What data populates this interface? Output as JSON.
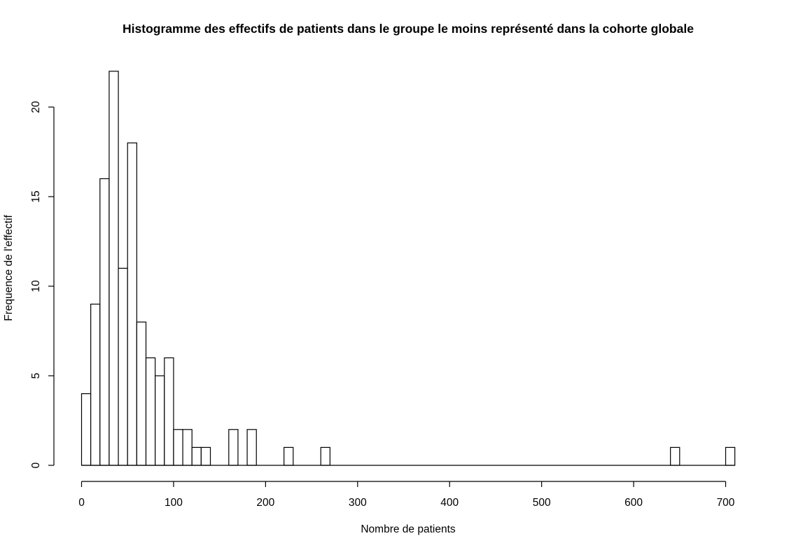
{
  "chart_data": {
    "type": "bar",
    "title": "Histogramme des effectifs de patients dans le groupe le moins représenté dans la cohorte globale",
    "xlabel": "Nombre de patients",
    "ylabel": "Frequence de l'effectif",
    "bin_width": 10,
    "xlim": [
      0,
      710
    ],
    "ylim": [
      0,
      22
    ],
    "x_ticks": [
      0,
      100,
      200,
      300,
      400,
      500,
      600,
      700
    ],
    "y_ticks": [
      0,
      5,
      10,
      15,
      20
    ],
    "bins": [
      {
        "x0": 0,
        "x1": 10,
        "count": 4
      },
      {
        "x0": 10,
        "x1": 20,
        "count": 9
      },
      {
        "x0": 20,
        "x1": 30,
        "count": 16
      },
      {
        "x0": 30,
        "x1": 40,
        "count": 22
      },
      {
        "x0": 40,
        "x1": 50,
        "count": 11
      },
      {
        "x0": 50,
        "x1": 60,
        "count": 18
      },
      {
        "x0": 60,
        "x1": 70,
        "count": 8
      },
      {
        "x0": 70,
        "x1": 80,
        "count": 6
      },
      {
        "x0": 80,
        "x1": 90,
        "count": 5
      },
      {
        "x0": 90,
        "x1": 100,
        "count": 6
      },
      {
        "x0": 100,
        "x1": 110,
        "count": 2
      },
      {
        "x0": 110,
        "x1": 120,
        "count": 2
      },
      {
        "x0": 120,
        "x1": 130,
        "count": 1
      },
      {
        "x0": 130,
        "x1": 140,
        "count": 1
      },
      {
        "x0": 140,
        "x1": 150,
        "count": 0
      },
      {
        "x0": 150,
        "x1": 160,
        "count": 0
      },
      {
        "x0": 160,
        "x1": 170,
        "count": 2
      },
      {
        "x0": 170,
        "x1": 180,
        "count": 0
      },
      {
        "x0": 180,
        "x1": 190,
        "count": 2
      },
      {
        "x0": 190,
        "x1": 200,
        "count": 0
      },
      {
        "x0": 200,
        "x1": 210,
        "count": 0
      },
      {
        "x0": 210,
        "x1": 220,
        "count": 0
      },
      {
        "x0": 220,
        "x1": 230,
        "count": 1
      },
      {
        "x0": 230,
        "x1": 240,
        "count": 0
      },
      {
        "x0": 240,
        "x1": 250,
        "count": 0
      },
      {
        "x0": 250,
        "x1": 260,
        "count": 0
      },
      {
        "x0": 260,
        "x1": 270,
        "count": 1
      },
      {
        "x0": 640,
        "x1": 650,
        "count": 1
      },
      {
        "x0": 700,
        "x1": 710,
        "count": 1
      }
    ],
    "grid": false,
    "legend": "none"
  }
}
